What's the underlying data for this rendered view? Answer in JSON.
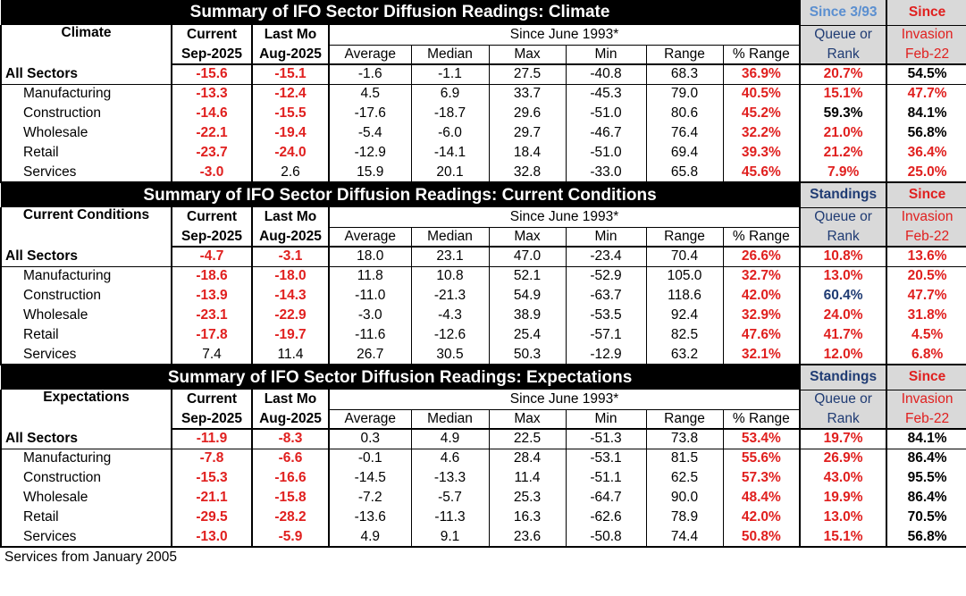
{
  "sections": [
    {
      "title": "Summary of IFO Sector Diffusion Readings: Climate",
      "side_top_left": "Since 3/93",
      "side_top_right": "Since",
      "label": "Climate",
      "rows": [
        {
          "name": "All Sectors",
          "cur": "-15.6",
          "last": "-15.1",
          "avg": "-1.6",
          "med": "-1.1",
          "max": "27.5",
          "min": "-40.8",
          "range": "68.3",
          "pct": "36.9%",
          "rank": "20.7%",
          "inv": "54.5%"
        },
        {
          "name": "Manufacturing",
          "cur": "-13.3",
          "last": "-12.4",
          "avg": "4.5",
          "med": "6.9",
          "max": "33.7",
          "min": "-45.3",
          "range": "79.0",
          "pct": "40.5%",
          "rank": "15.1%",
          "inv": "47.7%"
        },
        {
          "name": "Construction",
          "cur": "-14.6",
          "last": "-15.5",
          "avg": "-17.6",
          "med": "-18.7",
          "max": "29.6",
          "min": "-51.0",
          "range": "80.6",
          "pct": "45.2%",
          "rank": "59.3%",
          "inv": "84.1%"
        },
        {
          "name": "Wholesale",
          "cur": "-22.1",
          "last": "-19.4",
          "avg": "-5.4",
          "med": "-6.0",
          "max": "29.7",
          "min": "-46.7",
          "range": "76.4",
          "pct": "32.2%",
          "rank": "21.0%",
          "inv": "56.8%"
        },
        {
          "name": "Retail",
          "cur": "-23.7",
          "last": "-24.0",
          "avg": "-12.9",
          "med": "-14.1",
          "max": "18.4",
          "min": "-51.0",
          "range": "69.4",
          "pct": "39.3%",
          "rank": "21.2%",
          "inv": "36.4%"
        },
        {
          "name": "Services",
          "cur": "-3.0",
          "last": "2.6",
          "avg": "15.9",
          "med": "20.1",
          "max": "32.8",
          "min": "-33.0",
          "range": "65.8",
          "pct": "45.6%",
          "rank": "7.9%",
          "inv": "25.0%"
        }
      ]
    },
    {
      "title": "Summary of IFO Sector Diffusion Readings: Current Conditions",
      "side_top_left": "Standings",
      "side_top_right": "Since",
      "label": "Current Conditions",
      "rows": [
        {
          "name": "All Sectors",
          "cur": "-4.7",
          "last": "-3.1",
          "avg": "18.0",
          "med": "23.1",
          "max": "47.0",
          "min": "-23.4",
          "range": "70.4",
          "pct": "26.6%",
          "rank": "10.8%",
          "inv": "13.6%"
        },
        {
          "name": "Manufacturing",
          "cur": "-18.6",
          "last": "-18.0",
          "avg": "11.8",
          "med": "10.8",
          "max": "52.1",
          "min": "-52.9",
          "range": "105.0",
          "pct": "32.7%",
          "rank": "13.0%",
          "inv": "20.5%"
        },
        {
          "name": "Construction",
          "cur": "-13.9",
          "last": "-14.3",
          "avg": "-11.0",
          "med": "-21.3",
          "max": "54.9",
          "min": "-63.7",
          "range": "118.6",
          "pct": "42.0%",
          "rank": "60.4%",
          "inv": "47.7%"
        },
        {
          "name": "Wholesale",
          "cur": "-23.1",
          "last": "-22.9",
          "avg": "-3.0",
          "med": "-4.3",
          "max": "38.9",
          "min": "-53.5",
          "range": "92.4",
          "pct": "32.9%",
          "rank": "24.0%",
          "inv": "31.8%"
        },
        {
          "name": "Retail",
          "cur": "-17.8",
          "last": "-19.7",
          "avg": "-11.6",
          "med": "-12.6",
          "max": "25.4",
          "min": "-57.1",
          "range": "82.5",
          "pct": "47.6%",
          "rank": "41.7%",
          "inv": "4.5%"
        },
        {
          "name": "Services",
          "cur": "7.4",
          "last": "11.4",
          "avg": "26.7",
          "med": "30.5",
          "max": "50.3",
          "min": "-12.9",
          "range": "63.2",
          "pct": "32.1%",
          "rank": "12.0%",
          "inv": "6.8%"
        }
      ]
    },
    {
      "title": "Summary of IFO Sector Diffusion Readings: Expectations",
      "side_top_left": "Standings",
      "side_top_right": "Since",
      "label": "Expectations",
      "rows": [
        {
          "name": "All Sectors",
          "cur": "-11.9",
          "last": "-8.3",
          "avg": "0.3",
          "med": "4.9",
          "max": "22.5",
          "min": "-51.3",
          "range": "73.8",
          "pct": "53.4%",
          "rank": "19.7%",
          "inv": "84.1%"
        },
        {
          "name": "Manufacturing",
          "cur": "-7.8",
          "last": "-6.6",
          "avg": "-0.1",
          "med": "4.6",
          "max": "28.4",
          "min": "-53.1",
          "range": "81.5",
          "pct": "55.6%",
          "rank": "26.9%",
          "inv": "86.4%"
        },
        {
          "name": "Construction",
          "cur": "-15.3",
          "last": "-16.6",
          "avg": "-14.5",
          "med": "-13.3",
          "max": "11.4",
          "min": "-51.1",
          "range": "62.5",
          "pct": "57.3%",
          "rank": "43.0%",
          "inv": "95.5%"
        },
        {
          "name": "Wholesale",
          "cur": "-21.1",
          "last": "-15.8",
          "avg": "-7.2",
          "med": "-5.7",
          "max": "25.3",
          "min": "-64.7",
          "range": "90.0",
          "pct": "48.4%",
          "rank": "19.9%",
          "inv": "86.4%"
        },
        {
          "name": "Retail",
          "cur": "-29.5",
          "last": "-28.2",
          "avg": "-13.6",
          "med": "-11.3",
          "max": "16.3",
          "min": "-62.6",
          "range": "78.9",
          "pct": "42.0%",
          "rank": "13.0%",
          "inv": "70.5%"
        },
        {
          "name": "Services",
          "cur": "-13.0",
          "last": "-5.9",
          "avg": "4.9",
          "med": "9.1",
          "max": "23.6",
          "min": "-50.8",
          "range": "74.4",
          "pct": "50.8%",
          "rank": "15.1%",
          "inv": "56.8%"
        }
      ]
    }
  ],
  "headers": {
    "current": "Current",
    "current_date": "Sep-2025",
    "last": "Last Mo",
    "last_date": "Aug-2025",
    "since": "Since June 1993*",
    "average": "Average",
    "median": "Median",
    "max": "Max",
    "min": "Min",
    "range": "Range",
    "pct_range": "% Range",
    "queue_or": "Queue or",
    "rank": "Rank",
    "invasion": "Invasion",
    "feb": "Feb-22"
  },
  "footnote": "Services from January 2005",
  "colors": {
    "red": "#e0201f",
    "navy": "#1f3b73",
    "lightblue": "#5b8fd0",
    "grey": "#d9d9d9",
    "black": "#000000"
  }
}
